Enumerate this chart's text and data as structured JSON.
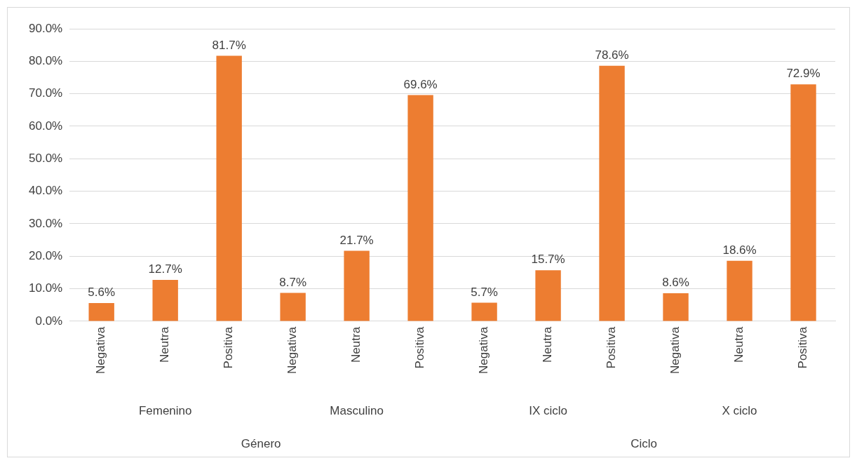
{
  "chart_data": {
    "type": "bar",
    "categories": [
      "Negativa",
      "Neutra",
      "Positiva",
      "Negativa",
      "Neutra",
      "Positiva",
      "Negativa",
      "Neutra",
      "Positiva",
      "Negativa",
      "Neutra",
      "Positiva"
    ],
    "values": [
      5.6,
      12.7,
      81.7,
      8.7,
      21.7,
      69.6,
      5.7,
      15.7,
      78.6,
      8.6,
      18.6,
      72.9
    ],
    "color": "#ed7d31",
    "ylim": [
      0,
      90
    ],
    "yticks": [
      {
        "value": 0,
        "label": "0.0%"
      },
      {
        "value": 10,
        "label": "10.0%"
      },
      {
        "value": 20,
        "label": "20.0%"
      },
      {
        "value": 30,
        "label": "30.0%"
      },
      {
        "value": 40,
        "label": "40.0%"
      },
      {
        "value": 50,
        "label": "50.0%"
      },
      {
        "value": 60,
        "label": "60.0%"
      },
      {
        "value": 70,
        "label": "70.0%"
      },
      {
        "value": 80,
        "label": "80.0%"
      },
      {
        "value": 90,
        "label": "90.0%"
      }
    ],
    "value_labels": [
      "5.6%",
      "12.7%",
      "81.7%",
      "8.7%",
      "21.7%",
      "69.6%",
      "5.7%",
      "15.7%",
      "78.6%",
      "8.6%",
      "18.6%",
      "72.9%"
    ],
    "annotations": [
      "Femenino",
      "Masculino",
      "IX ciclo",
      "X ciclo",
      "Género",
      "Ciclo"
    ],
    "grid": "y",
    "legend": false
  }
}
